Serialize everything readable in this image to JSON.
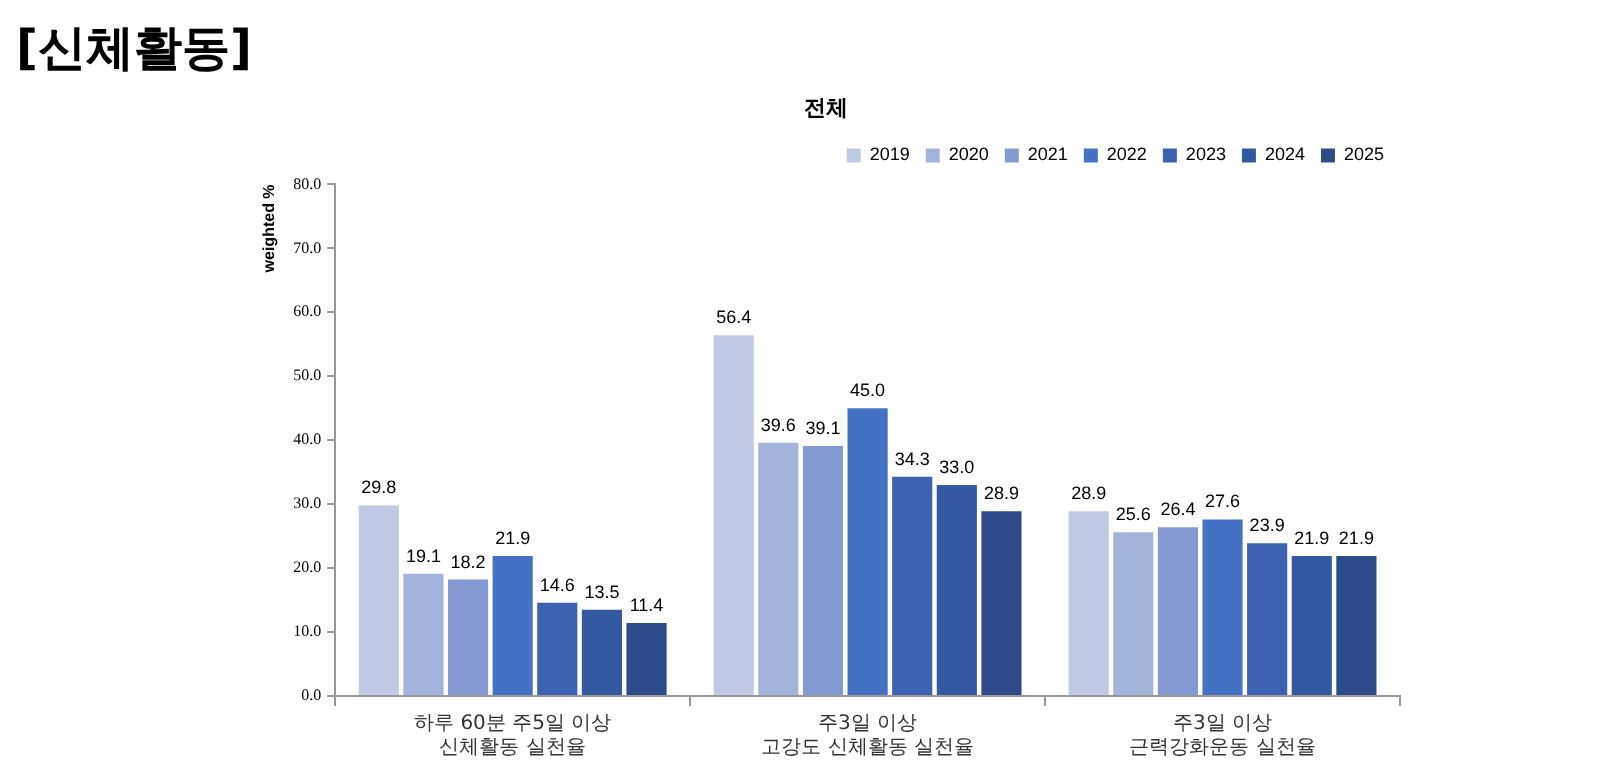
{
  "chart_data": {
    "type": "bar",
    "title": "[신체활동]",
    "subtitle": "전체",
    "ylabel": "weighted %",
    "categories": [
      "하루 60분 주5일 이상\n신체활동 실천율",
      "주3일 이상\n고강도 신체활동 실천율",
      "주3일 이상\n근력강화운동 실천율"
    ],
    "series": [
      {
        "name": "2019",
        "color": "#c0c9e4",
        "values": [
          29.8,
          56.4,
          28.9
        ],
        "value_labels": [
          "29.8",
          "56.4",
          "28.9"
        ]
      },
      {
        "name": "2020",
        "color": "#a4b3dc",
        "values": [
          19.1,
          39.6,
          25.6
        ],
        "value_labels": [
          "19.1",
          "39.6",
          "25.6"
        ]
      },
      {
        "name": "2021",
        "color": "#8599d3",
        "values": [
          18.2,
          39.1,
          26.4
        ],
        "value_labels": [
          "18.2",
          "39.1",
          "26.4"
        ]
      },
      {
        "name": "2022",
        "color": "#4472c4",
        "values": [
          21.9,
          45.0,
          27.6
        ],
        "value_labels": [
          "21.9",
          "45.0",
          "27.6"
        ]
      },
      {
        "name": "2023",
        "color": "#3b63b2",
        "values": [
          14.6,
          34.3,
          23.9
        ],
        "value_labels": [
          "14.6",
          "34.3",
          "23.9"
        ]
      },
      {
        "name": "2024",
        "color": "#335aa0",
        "values": [
          13.5,
          33.0,
          21.9
        ],
        "value_labels": [
          "13.5",
          "33.0",
          "21.9"
        ]
      },
      {
        "name": "2025",
        "color": "#2d4b8a",
        "values": [
          11.4,
          28.9,
          21.9
        ],
        "value_labels": [
          "11.4",
          "28.9",
          "21.9"
        ]
      }
    ],
    "ylim": [
      0,
      80
    ],
    "yticks": [
      {
        "value": 0,
        "label": "0.0"
      },
      {
        "value": 10,
        "label": "10.0"
      },
      {
        "value": 20,
        "label": "20.0"
      },
      {
        "value": 30,
        "label": "30.0"
      },
      {
        "value": 40,
        "label": "40.0"
      },
      {
        "value": 50,
        "label": "50.0"
      },
      {
        "value": 60,
        "label": "60.0"
      },
      {
        "value": 70,
        "label": "70.0"
      },
      {
        "value": 80,
        "label": "80.0"
      }
    ],
    "grid": false,
    "legend": "top right"
  }
}
